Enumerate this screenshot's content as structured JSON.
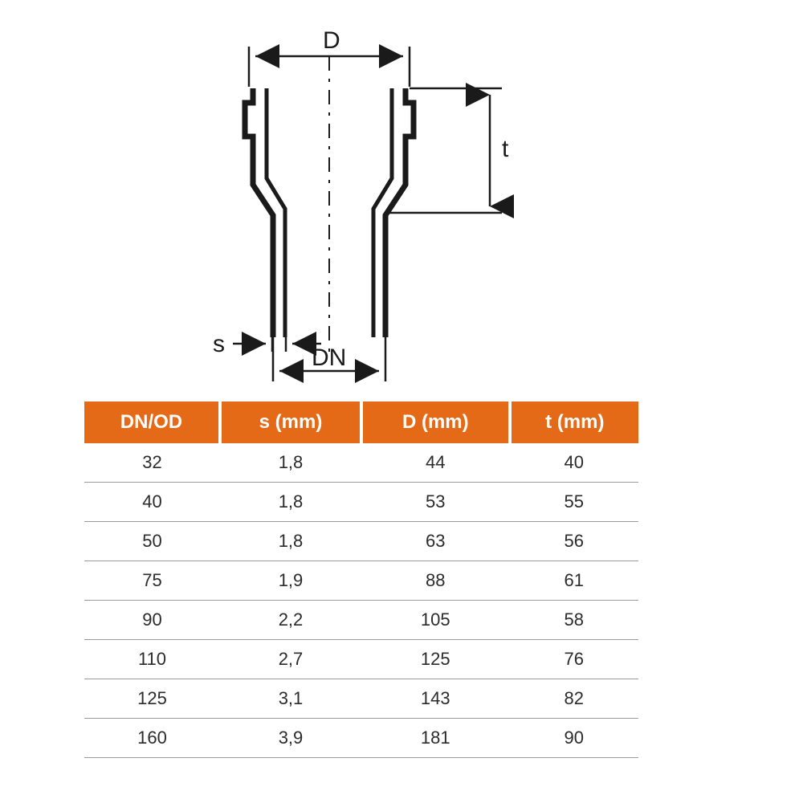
{
  "diagram": {
    "labels": {
      "D": "D",
      "t": "t",
      "s": "s",
      "DN": "DN"
    },
    "stroke_color": "#1a1a1a",
    "stroke_width_main": 7,
    "stroke_width_dim": 2.5,
    "centerline_dash": "18 10 4 10",
    "arrow_size": 12,
    "label_fontsize": 30
  },
  "table": {
    "header_bg": "#e56a17",
    "header_fg": "#ffffff",
    "border_color": "#9a9a9a",
    "cell_fg": "#2b2b2b",
    "header_fontsize": 24,
    "cell_fontsize": 22,
    "columns": [
      "DN/OD",
      "s (mm)",
      "D (mm)",
      "t (mm)"
    ],
    "rows": [
      [
        "32",
        "1,8",
        "44",
        "40"
      ],
      [
        "40",
        "1,8",
        "53",
        "55"
      ],
      [
        "50",
        "1,8",
        "63",
        "56"
      ],
      [
        "75",
        "1,9",
        "88",
        "61"
      ],
      [
        "90",
        "2,2",
        "105",
        "58"
      ],
      [
        "110",
        "2,7",
        "125",
        "76"
      ],
      [
        "125",
        "3,1",
        "143",
        "82"
      ],
      [
        "160",
        "3,9",
        "181",
        "90"
      ]
    ]
  }
}
